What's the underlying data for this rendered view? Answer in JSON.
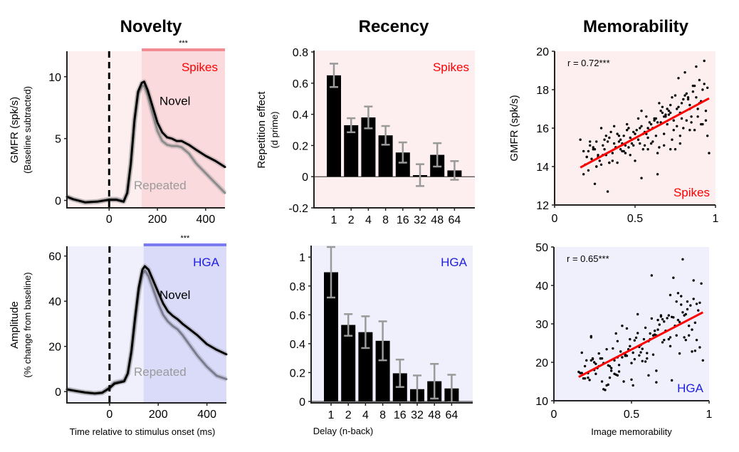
{
  "columns": [
    "Novelty",
    "Recency",
    "Memorability"
  ],
  "colors": {
    "spikes_accent": "#ff0000",
    "spikes_bg_light": "#fdeef0",
    "spikes_bg_dark": "#fbdadd",
    "spikes_bar": "#f28c93",
    "hga_accent": "#2020e0",
    "hga_bg_light": "#f0f0fd",
    "hga_bg_dark": "#dadaf9",
    "hga_bar": "#7b7bf0",
    "novel_line": "#000000",
    "repeated_spikes_line": "#8c8c8c",
    "repeated_hga_line": "#7a7a90",
    "bar_fill": "#000000",
    "errorbar": "#9a9a9a",
    "fit_line": "#ff0000"
  },
  "chart_data": [
    {
      "id": "novelty-spikes",
      "type": "line",
      "title": "Novelty",
      "xlabel": "",
      "ylabel": "GMFR (spk/s)",
      "ylabel2": "(Baseline subtracted)",
      "xlim": [
        -175,
        480
      ],
      "ylim": [
        -0.6,
        12.0
      ],
      "xticks": [
        0,
        200,
        400
      ],
      "yticks": [
        0,
        5,
        10
      ],
      "significance_window": [
        135,
        480
      ],
      "significance_label": "***",
      "condition_label": "Spikes",
      "stimulus_onset": 0,
      "series": [
        {
          "name": "Novel",
          "x": [
            -175,
            -150,
            -100,
            -50,
            0,
            30,
            60,
            75,
            90,
            105,
            120,
            135,
            145,
            160,
            180,
            200,
            220,
            240,
            260,
            280,
            300,
            330,
            360,
            400,
            440,
            480
          ],
          "y": [
            0.3,
            0.1,
            -0.15,
            -0.1,
            0.05,
            0.05,
            -0.1,
            0.6,
            3.0,
            6.5,
            8.8,
            9.5,
            9.6,
            8.9,
            7.6,
            6.3,
            5.5,
            5.1,
            5.0,
            4.8,
            4.8,
            4.5,
            4.1,
            3.6,
            3.2,
            2.7
          ]
        },
        {
          "name": "Repeated",
          "x": [
            -175,
            -150,
            -100,
            -50,
            0,
            30,
            60,
            75,
            90,
            105,
            120,
            135,
            145,
            160,
            180,
            200,
            220,
            240,
            260,
            280,
            300,
            330,
            360,
            400,
            440,
            480
          ],
          "y": [
            0.3,
            0.1,
            -0.15,
            -0.1,
            0.1,
            0.1,
            -0.05,
            0.6,
            3.0,
            6.4,
            8.6,
            9.2,
            9.3,
            8.5,
            7.0,
            5.6,
            4.8,
            4.5,
            4.4,
            4.4,
            4.3,
            3.8,
            3.0,
            2.2,
            1.4,
            0.6
          ]
        }
      ]
    },
    {
      "id": "novelty-hga",
      "type": "line",
      "title": "",
      "xlabel": "Time relative to stimulus onset (ms)",
      "ylabel": "Amplitude",
      "ylabel2": "(% change from baseline)",
      "xlim": [
        -175,
        480
      ],
      "ylim": [
        -5,
        64
      ],
      "xticks": [
        0,
        200,
        400
      ],
      "yticks": [
        0,
        20,
        40,
        60
      ],
      "significance_window": [
        140,
        480
      ],
      "significance_label": "***",
      "condition_label": "HGA",
      "stimulus_onset": 0,
      "series": [
        {
          "name": "Novel",
          "x": [
            -175,
            -140,
            -100,
            -60,
            -30,
            0,
            20,
            40,
            60,
            75,
            90,
            105,
            120,
            135,
            145,
            160,
            180,
            200,
            220,
            240,
            260,
            280,
            300,
            330,
            360,
            400,
            440,
            480
          ],
          "y": [
            1,
            0.3,
            -0.4,
            -0.8,
            -0.5,
            1.5,
            3.5,
            4,
            4.5,
            8,
            18,
            33,
            46,
            54,
            55.5,
            54,
            49,
            44,
            39,
            35.5,
            33.5,
            32,
            30,
            27.5,
            25,
            21,
            18.5,
            16.5
          ]
        },
        {
          "name": "Repeated",
          "x": [
            -175,
            -140,
            -100,
            -60,
            -30,
            0,
            20,
            40,
            60,
            75,
            90,
            105,
            120,
            135,
            145,
            160,
            180,
            200,
            220,
            240,
            260,
            280,
            300,
            330,
            360,
            400,
            440,
            480
          ],
          "y": [
            1,
            0.3,
            -0.4,
            -0.8,
            -0.5,
            1.8,
            4,
            4.5,
            5,
            8,
            17,
            31,
            44,
            52,
            53.5,
            51,
            45,
            39,
            34,
            31,
            29,
            27.5,
            25,
            20.5,
            16,
            11,
            7,
            5.5
          ]
        }
      ]
    },
    {
      "id": "recency-spikes",
      "type": "bar",
      "title": "Recency",
      "xlabel": "",
      "ylabel": "Repetition effect",
      "ylabel2": "(d prime)",
      "categories": [
        "1",
        "2",
        "4",
        "8",
        "16",
        "32",
        "48",
        "64"
      ],
      "values": [
        0.65,
        0.33,
        0.38,
        0.265,
        0.155,
        0.01,
        0.14,
        0.04
      ],
      "errors": [
        0.075,
        0.045,
        0.07,
        0.06,
        0.065,
        0.07,
        0.075,
        0.06
      ],
      "ylim": [
        -0.2,
        0.8
      ],
      "yticks": [
        -0.2,
        0,
        0.2,
        0.4,
        0.6,
        0.8
      ],
      "ytick_labels": [
        "-0.2",
        "0",
        "0.2",
        "0.4",
        "0.6",
        "0.8"
      ],
      "condition_label": "Spikes"
    },
    {
      "id": "recency-hga",
      "type": "bar",
      "title": "",
      "xlabel": "Delay (n-back)",
      "ylabel": "",
      "ylabel2": "",
      "categories": [
        "1",
        "2",
        "4",
        "8",
        "16",
        "32",
        "48",
        "64"
      ],
      "values": [
        0.895,
        0.53,
        0.48,
        0.42,
        0.195,
        0.085,
        0.14,
        0.09
      ],
      "errors": [
        0.175,
        0.075,
        0.11,
        0.135,
        0.095,
        0.095,
        0.12,
        0.095
      ],
      "ylim": [
        -0.01,
        1.07
      ],
      "yticks": [
        0,
        0.2,
        0.4,
        0.6,
        0.8,
        1
      ],
      "ytick_labels": [
        "0",
        "0.2",
        "0.4",
        "0.6",
        "0.8",
        "1"
      ],
      "condition_label": "HGA"
    },
    {
      "id": "memorability-spikes",
      "type": "scatter",
      "title": "Memorability",
      "xlabel": "",
      "ylabel": "GMFR (spk/s)",
      "xlim": [
        0,
        1
      ],
      "ylim": [
        12,
        20
      ],
      "xticks": [
        0,
        0.5,
        1
      ],
      "xtick_labels": [
        "0",
        "0.5",
        "1"
      ],
      "yticks": [
        12,
        14,
        16,
        18,
        20
      ],
      "annotation": "r = 0.72***",
      "condition_label": "Spikes",
      "fit": {
        "x": [
          0.16,
          0.96
        ],
        "y": [
          13.95,
          17.55
        ]
      },
      "points": {
        "x": [
          0.16,
          0.18,
          0.19,
          0.2,
          0.21,
          0.22,
          0.23,
          0.24,
          0.25,
          0.26,
          0.27,
          0.28,
          0.29,
          0.3,
          0.3,
          0.31,
          0.32,
          0.33,
          0.34,
          0.35,
          0.36,
          0.37,
          0.38,
          0.39,
          0.4,
          0.41,
          0.42,
          0.43,
          0.44,
          0.45,
          0.46,
          0.47,
          0.48,
          0.49,
          0.5,
          0.51,
          0.52,
          0.53,
          0.54,
          0.55,
          0.56,
          0.57,
          0.58,
          0.59,
          0.6,
          0.61,
          0.62,
          0.63,
          0.64,
          0.65,
          0.66,
          0.67,
          0.68,
          0.69,
          0.7,
          0.71,
          0.72,
          0.73,
          0.74,
          0.75,
          0.76,
          0.77,
          0.78,
          0.79,
          0.8,
          0.81,
          0.82,
          0.83,
          0.84,
          0.85,
          0.86,
          0.87,
          0.88,
          0.89,
          0.9,
          0.91,
          0.92,
          0.93,
          0.94,
          0.95,
          0.96,
          0.2,
          0.25,
          0.33,
          0.38,
          0.42,
          0.47,
          0.52,
          0.56,
          0.6,
          0.64,
          0.68,
          0.72,
          0.76,
          0.8,
          0.84,
          0.88,
          0.92,
          0.22,
          0.27,
          0.31,
          0.36,
          0.41,
          0.45,
          0.5,
          0.54,
          0.58,
          0.62,
          0.66,
          0.7,
          0.74,
          0.78,
          0.82,
          0.86,
          0.9,
          0.94,
          0.18,
          0.24,
          0.29,
          0.34,
          0.39,
          0.44,
          0.49,
          0.53,
          0.57,
          0.61,
          0.65,
          0.69,
          0.73,
          0.77,
          0.81,
          0.85,
          0.89,
          0.93,
          0.21,
          0.26,
          0.32,
          0.37,
          0.43,
          0.48,
          0.55,
          0.59,
          0.63,
          0.67,
          0.71,
          0.75,
          0.79,
          0.83,
          0.87,
          0.91,
          0.95,
          0.34,
          0.54,
          0.64,
          0.26,
          0.72,
          0.78,
          0.84,
          0.68,
          0.58,
          0.46,
          0.4
        ],
        "y": [
          15.4,
          14.8,
          14.1,
          14.5,
          13.8,
          15.3,
          14.4,
          14.9,
          13.1,
          14.0,
          14.5,
          14.3,
          16.0,
          14.6,
          15.1,
          14.9,
          15.6,
          12.7,
          14.2,
          15.8,
          14.7,
          16.1,
          15.0,
          14.2,
          15.3,
          15.4,
          14.8,
          15.6,
          15.1,
          16.2,
          15.0,
          14.6,
          15.4,
          15.8,
          14.3,
          15.9,
          16.5,
          15.2,
          16.9,
          15.7,
          15.1,
          16.6,
          15.5,
          15.9,
          15.2,
          16.0,
          16.5,
          15.6,
          14.7,
          17.3,
          16.3,
          17.1,
          15.1,
          16.7,
          16.2,
          16.9,
          17.2,
          15.4,
          15.9,
          17.7,
          16.1,
          18.6,
          16.8,
          17.3,
          16.0,
          18.9,
          16.4,
          17.5,
          17.0,
          16.3,
          17.9,
          15.9,
          19.2,
          16.6,
          18.5,
          17.4,
          16.2,
          19.5,
          16.9,
          18.1,
          14.7,
          14.5,
          14.9,
          15.3,
          15.0,
          15.2,
          15.5,
          15.4,
          15.8,
          16.2,
          16.3,
          16.6,
          16.8,
          17.0,
          17.5,
          17.2,
          17.6,
          18.0,
          15.1,
          14.6,
          15.4,
          14.3,
          14.9,
          15.9,
          15.7,
          16.1,
          16.0,
          16.4,
          16.9,
          17.0,
          16.4,
          15.6,
          17.8,
          18.2,
          17.3,
          16.4,
          13.6,
          15.0,
          14.1,
          15.5,
          15.7,
          14.7,
          15.1,
          16.0,
          15.7,
          15.3,
          15.0,
          16.6,
          17.6,
          17.1,
          17.7,
          16.6,
          17.0,
          18.3,
          14.8,
          15.3,
          14.6,
          15.2,
          14.8,
          15.2,
          14.9,
          16.3,
          16.5,
          16.8,
          16.7,
          14.9,
          16.5,
          17.6,
          18.2,
          16.2,
          15.6,
          14.2,
          13.4,
          13.6,
          14.0,
          14.9,
          15.2,
          15.9,
          15.7,
          14.9,
          16.0,
          15.6
        ]
      }
    },
    {
      "id": "memorability-hga",
      "type": "scatter",
      "title": "",
      "xlabel": "Image memorability",
      "ylabel": "",
      "xlim": [
        0,
        1
      ],
      "ylim": [
        10,
        50
      ],
      "xticks": [
        0,
        0.5,
        1
      ],
      "xtick_labels": [
        "0",
        "0.5",
        "1"
      ],
      "yticks": [
        10,
        20,
        30,
        40,
        50
      ],
      "annotation": "r = 0.65***",
      "condition_label": "HGA",
      "fit": {
        "x": [
          0.16,
          0.96
        ],
        "y": [
          16.2,
          33.0
        ]
      },
      "points": {
        "x": [
          0.16,
          0.17,
          0.18,
          0.19,
          0.2,
          0.21,
          0.22,
          0.23,
          0.24,
          0.25,
          0.26,
          0.27,
          0.28,
          0.29,
          0.3,
          0.31,
          0.32,
          0.33,
          0.34,
          0.35,
          0.36,
          0.37,
          0.38,
          0.39,
          0.4,
          0.41,
          0.42,
          0.43,
          0.44,
          0.45,
          0.46,
          0.47,
          0.48,
          0.49,
          0.5,
          0.51,
          0.52,
          0.53,
          0.54,
          0.55,
          0.56,
          0.57,
          0.58,
          0.59,
          0.6,
          0.61,
          0.62,
          0.63,
          0.64,
          0.65,
          0.66,
          0.67,
          0.68,
          0.69,
          0.7,
          0.71,
          0.72,
          0.73,
          0.74,
          0.75,
          0.76,
          0.77,
          0.78,
          0.79,
          0.8,
          0.81,
          0.82,
          0.83,
          0.84,
          0.85,
          0.86,
          0.87,
          0.88,
          0.89,
          0.9,
          0.91,
          0.92,
          0.93,
          0.94,
          0.95,
          0.96,
          0.2,
          0.25,
          0.3,
          0.35,
          0.4,
          0.45,
          0.5,
          0.55,
          0.6,
          0.65,
          0.7,
          0.75,
          0.8,
          0.85,
          0.9,
          0.22,
          0.27,
          0.32,
          0.37,
          0.42,
          0.47,
          0.52,
          0.57,
          0.62,
          0.67,
          0.72,
          0.77,
          0.82,
          0.87,
          0.92,
          0.18,
          0.24,
          0.29,
          0.34,
          0.39,
          0.44,
          0.49,
          0.54,
          0.59,
          0.64,
          0.69,
          0.74,
          0.79,
          0.84,
          0.89,
          0.94,
          0.26,
          0.31,
          0.36,
          0.41,
          0.46,
          0.51,
          0.56,
          0.61,
          0.66,
          0.71,
          0.76,
          0.81,
          0.86,
          0.91,
          0.63,
          0.83,
          0.75,
          0.24,
          0.41,
          0.66
        ],
        "y": [
          17.5,
          17.2,
          22.5,
          15.8,
          19.0,
          20.5,
          16.0,
          15.4,
          26.8,
          21.0,
          20.0,
          17.0,
          18.5,
          22.3,
          21.0,
          15.0,
          19.8,
          12.8,
          23.4,
          14.2,
          16.0,
          17.8,
          23.6,
          20.5,
          27.5,
          21.3,
          17.6,
          22.8,
          29.5,
          15.0,
          21.7,
          28.8,
          23.4,
          26.0,
          19.8,
          22.5,
          20.8,
          26.4,
          32.5,
          21.8,
          24.5,
          20.3,
          26.0,
          29.0,
          21.0,
          25.5,
          27.5,
          31.4,
          22.0,
          28.2,
          27.0,
          31.0,
          29.8,
          32.2,
          31.2,
          30.6,
          28.0,
          31.5,
          32.2,
          37.5,
          31.8,
          42.0,
          29.5,
          27.0,
          38.0,
          30.5,
          35.0,
          33.0,
          32.2,
          25.8,
          35.8,
          27.0,
          34.8,
          28.5,
          41.3,
          30.3,
          35.2,
          33.5,
          35.5,
          40.5,
          20.5,
          15.8,
          20.8,
          21.0,
          19.2,
          16.8,
          22.3,
          15.5,
          24.0,
          22.4,
          27.2,
          25.2,
          26.5,
          31.0,
          32.5,
          36.5,
          17.2,
          19.6,
          13.0,
          18.5,
          19.3,
          21.7,
          25.7,
          23.5,
          26.0,
          28.5,
          28.2,
          31.7,
          37.2,
          29.5,
          25.8,
          17.2,
          20.5,
          19.0,
          14.0,
          17.0,
          21.3,
          24.2,
          27.6,
          20.2,
          27.0,
          31.9,
          26.0,
          35.8,
          26.5,
          22.8,
          23.9,
          18.0,
          21.0,
          19.0,
          16.6,
          22.0,
          14.0,
          22.6,
          16.6,
          14.8,
          25.8,
          15.3,
          22.3,
          33.8,
          23.0,
          42.6,
          46.8,
          24.2,
          26.5,
          25.5,
          17.8
        ]
      }
    }
  ]
}
